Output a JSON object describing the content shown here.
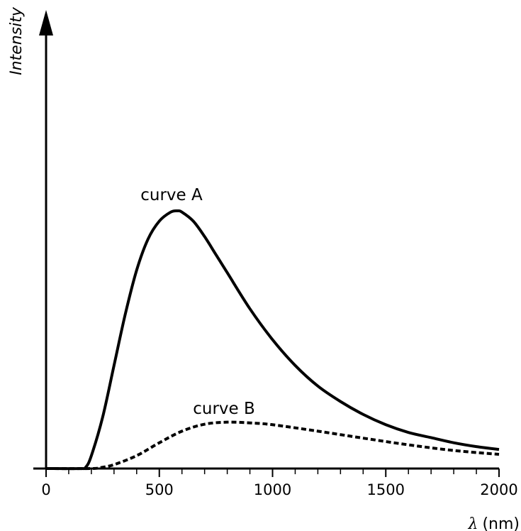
{
  "chart_data": {
    "type": "line",
    "title": "",
    "xlabel_symbol": "λ",
    "xlabel_unit": "(nm)",
    "ylabel": "Intensity",
    "xlim": [
      0,
      2000
    ],
    "x_tick_labels": [
      "0",
      "500",
      "1000",
      "1500",
      "2000"
    ],
    "x_minor_tick_step": 100,
    "grid": false,
    "legend": "none",
    "series": [
      {
        "name": "curve A",
        "style": "solid",
        "color": "#000000",
        "x": [
          0,
          150,
          175,
          200,
          250,
          300,
          350,
          400,
          450,
          500,
          550,
          580,
          600,
          650,
          700,
          750,
          800,
          900,
          1000,
          1100,
          1200,
          1300,
          1400,
          1500,
          1600,
          1700,
          1800,
          1900,
          2000
        ],
        "y": [
          0,
          0,
          0.005,
          0.05,
          0.2,
          0.4,
          0.6,
          0.77,
          0.89,
          0.96,
          0.995,
          1.0,
          0.995,
          0.96,
          0.9,
          0.83,
          0.76,
          0.62,
          0.5,
          0.4,
          0.32,
          0.26,
          0.21,
          0.17,
          0.14,
          0.12,
          0.1,
          0.085,
          0.074
        ]
      },
      {
        "name": "curve B",
        "style": "dashed",
        "color": "#000000",
        "x": [
          0,
          200,
          250,
          300,
          400,
          500,
          600,
          700,
          800,
          900,
          1000,
          1200,
          1400,
          1600,
          1800,
          2000
        ],
        "y": [
          0,
          0,
          0.005,
          0.015,
          0.05,
          0.1,
          0.145,
          0.172,
          0.18,
          0.177,
          0.17,
          0.145,
          0.118,
          0.092,
          0.07,
          0.055
        ]
      }
    ]
  }
}
